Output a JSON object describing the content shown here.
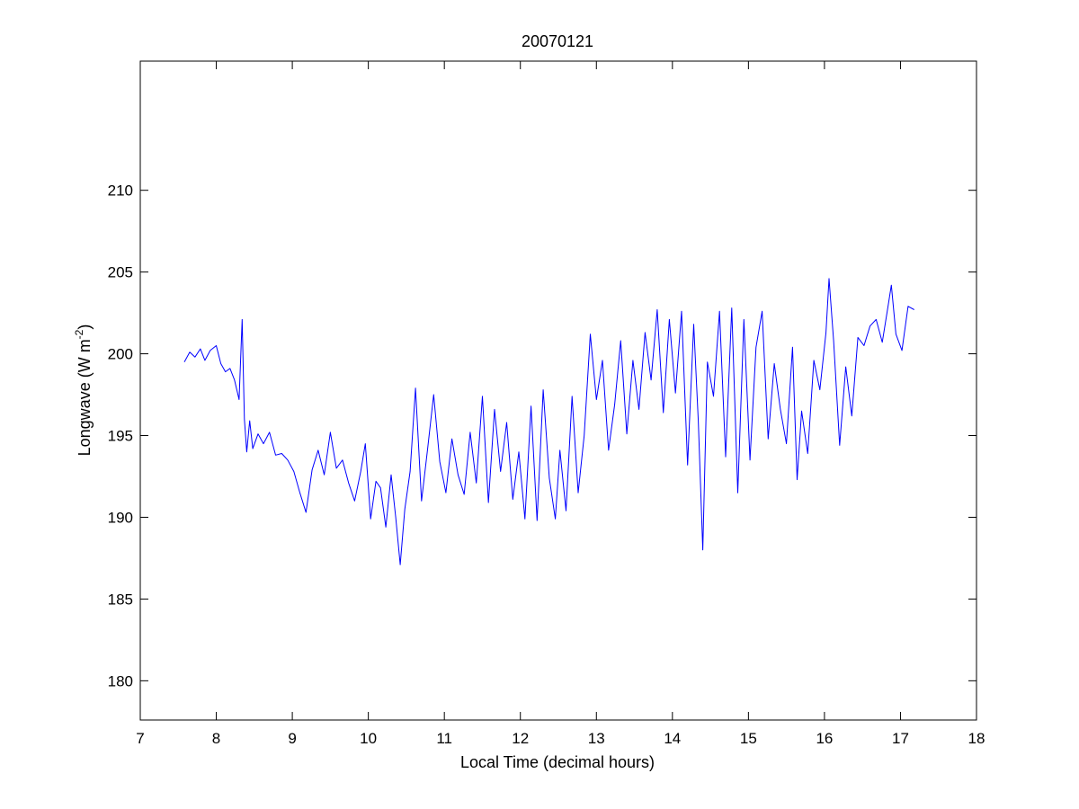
{
  "chart_data": {
    "type": "line",
    "title": "20070121",
    "xlabel": "Local Time (decimal hours)",
    "ylabel_main": "Longwave (W m",
    "ylabel_sup": "-2",
    "ylabel_close": ")",
    "xlim": [
      7,
      18
    ],
    "ylim": [
      177.6,
      217.9
    ],
    "xticks": [
      7,
      8,
      9,
      10,
      11,
      12,
      13,
      14,
      15,
      16,
      17,
      18
    ],
    "yticks": [
      180,
      185,
      190,
      195,
      200,
      205,
      210
    ],
    "grid": false,
    "line_color": "#0000ff",
    "series": [
      {
        "x": [
          7.58,
          7.65,
          7.72,
          7.79,
          7.85,
          7.92,
          8.0,
          8.06,
          8.12,
          8.18,
          8.24,
          8.3,
          8.34,
          8.37,
          8.4,
          8.44,
          8.48,
          8.55,
          8.62,
          8.7,
          8.78,
          8.86,
          8.94,
          9.02,
          9.1,
          9.18,
          9.26,
          9.34,
          9.42,
          9.5,
          9.58,
          9.66,
          9.74,
          9.82,
          9.9,
          9.96,
          10.03,
          10.1,
          10.16,
          10.23,
          10.3,
          10.36,
          10.42,
          10.48,
          10.55,
          10.62,
          10.7,
          10.78,
          10.86,
          10.94,
          11.02,
          11.1,
          11.18,
          11.26,
          11.34,
          11.42,
          11.5,
          11.58,
          11.66,
          11.74,
          11.82,
          11.9,
          11.98,
          12.06,
          12.14,
          12.22,
          12.3,
          12.38,
          12.46,
          12.52,
          12.6,
          12.68,
          12.76,
          12.84,
          12.92,
          13.0,
          13.08,
          13.16,
          13.24,
          13.32,
          13.4,
          13.48,
          13.56,
          13.64,
          13.72,
          13.8,
          13.88,
          13.96,
          14.04,
          14.12,
          14.2,
          14.28,
          14.34,
          14.4,
          14.46,
          14.54,
          14.62,
          14.7,
          14.78,
          14.86,
          14.94,
          15.02,
          15.1,
          15.18,
          15.26,
          15.34,
          15.42,
          15.5,
          15.58,
          15.64,
          15.7,
          15.78,
          15.86,
          15.94,
          16.02,
          16.06,
          16.12,
          16.2,
          16.28,
          16.36,
          16.44,
          16.52,
          16.6,
          16.68,
          16.76,
          16.84,
          16.88,
          16.94,
          17.02,
          17.1,
          17.18
        ],
        "y": [
          199.5,
          200.1,
          199.8,
          200.3,
          199.6,
          200.2,
          200.5,
          199.4,
          198.9,
          199.1,
          198.4,
          197.2,
          202.1,
          196.0,
          194.0,
          195.9,
          194.2,
          195.1,
          194.5,
          195.2,
          193.8,
          193.9,
          193.5,
          192.8,
          191.5,
          190.3,
          192.9,
          194.1,
          192.6,
          195.2,
          193.0,
          193.5,
          192.1,
          191.0,
          192.8,
          194.5,
          189.9,
          192.2,
          191.8,
          189.4,
          192.6,
          190.0,
          187.1,
          190.5,
          192.8,
          197.9,
          191.0,
          194.2,
          197.5,
          193.4,
          191.5,
          194.8,
          192.6,
          191.4,
          195.2,
          192.1,
          197.4,
          190.9,
          196.6,
          192.8,
          195.8,
          191.1,
          194.0,
          189.9,
          196.8,
          189.8,
          197.8,
          192.4,
          189.9,
          194.1,
          190.4,
          197.4,
          191.5,
          195.0,
          201.2,
          197.2,
          199.6,
          194.1,
          196.9,
          200.8,
          195.1,
          199.6,
          196.6,
          201.3,
          198.4,
          202.7,
          196.4,
          202.1,
          197.6,
          202.6,
          193.2,
          201.8,
          195.9,
          188.0,
          199.5,
          197.4,
          202.6,
          193.7,
          202.8,
          191.5,
          202.1,
          193.5,
          200.4,
          202.6,
          194.8,
          199.4,
          196.6,
          194.5,
          200.4,
          192.3,
          196.5,
          193.9,
          199.6,
          197.8,
          201.3,
          204.6,
          200.8,
          194.4,
          199.2,
          196.2,
          201.0,
          200.5,
          201.7,
          202.1,
          200.7,
          203.0,
          204.2,
          201.2,
          200.2,
          202.9,
          202.7
        ]
      }
    ]
  }
}
